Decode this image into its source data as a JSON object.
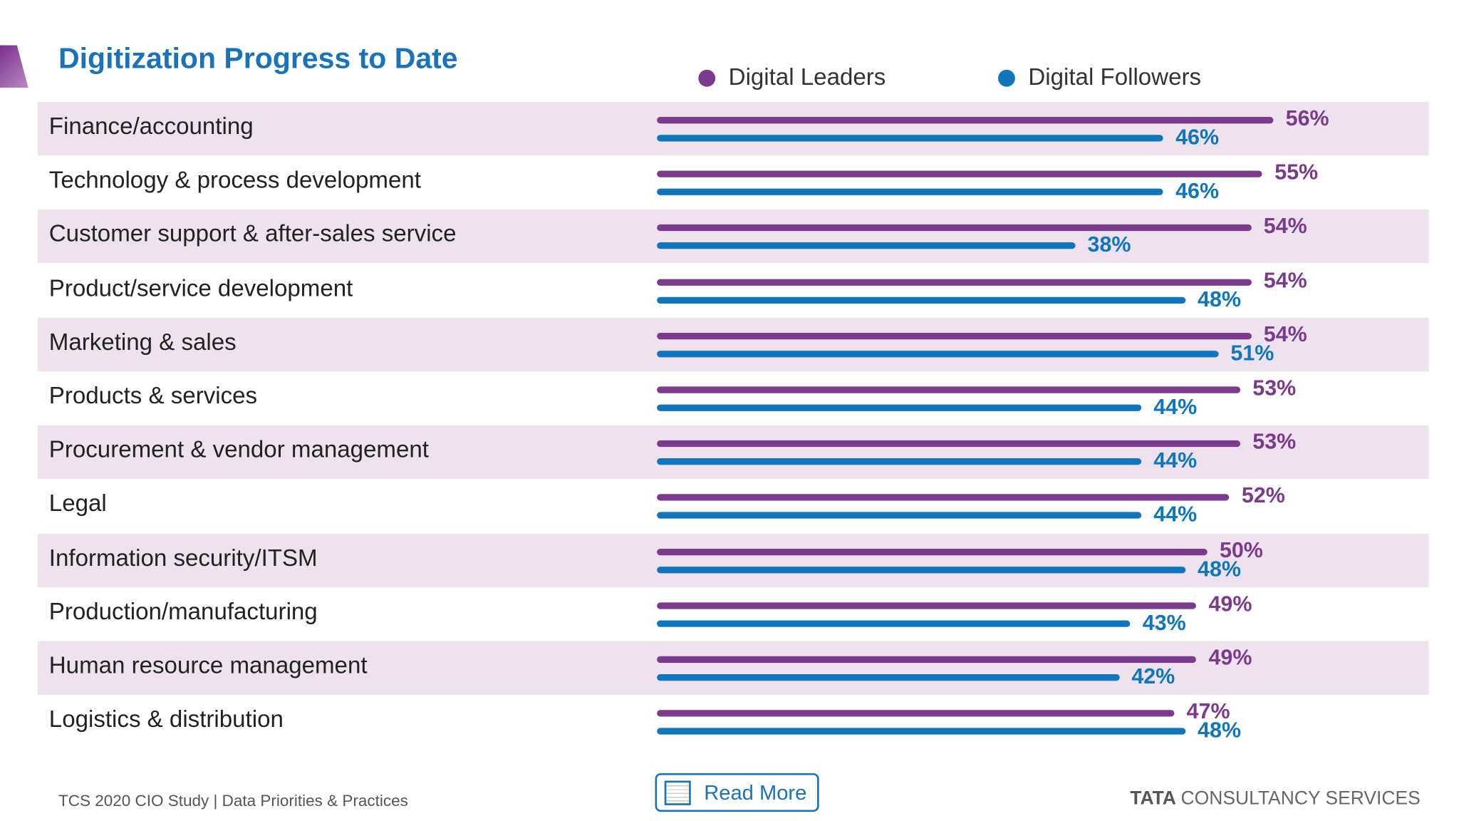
{
  "chart_data": {
    "type": "bar",
    "orientation": "horizontal",
    "title": "Digitization Progress to Date",
    "unit": "%",
    "categories": [
      "Finance/accounting",
      "Technology & process development",
      "Customer support & after-sales service",
      "Product/service development",
      "Marketing & sales",
      "Products & services",
      "Procurement & vendor management",
      "Legal",
      "Information security/ITSM",
      "Production/manufacturing",
      "Human resource management",
      "Logistics & distribution"
    ],
    "series": [
      {
        "name": "Digital Leaders",
        "color": "#7b3a8c",
        "values": [
          56,
          55,
          54,
          54,
          54,
          53,
          53,
          52,
          50,
          49,
          49,
          47
        ]
      },
      {
        "name": "Digital Followers",
        "color": "#0f75bc",
        "values": [
          46,
          46,
          38,
          48,
          51,
          44,
          44,
          44,
          48,
          43,
          42,
          48
        ]
      }
    ],
    "value_labels": [
      [
        "56%",
        "55%",
        "54%",
        "54%",
        "54%",
        "53%",
        "53%",
        "52%",
        "50%",
        "49%",
        "49%",
        "47%"
      ],
      [
        "46%",
        "46%",
        "38%",
        "48%",
        "51%",
        "44%",
        "44%",
        "44%",
        "48%",
        "43%",
        "42%",
        "48%"
      ]
    ],
    "legend_position": "top",
    "grid": false
  },
  "footer": {
    "source": "TCS 2020 CIO Study | Data Priorities & Practices",
    "read_more_label": "Read More",
    "read_more_icon": "document-icon",
    "logo_bold": "TATA",
    "logo_rest": "CONSULTANCY SERVICES"
  },
  "colors": {
    "title": "#1a72bb",
    "row_shade": "#ede2ee"
  }
}
